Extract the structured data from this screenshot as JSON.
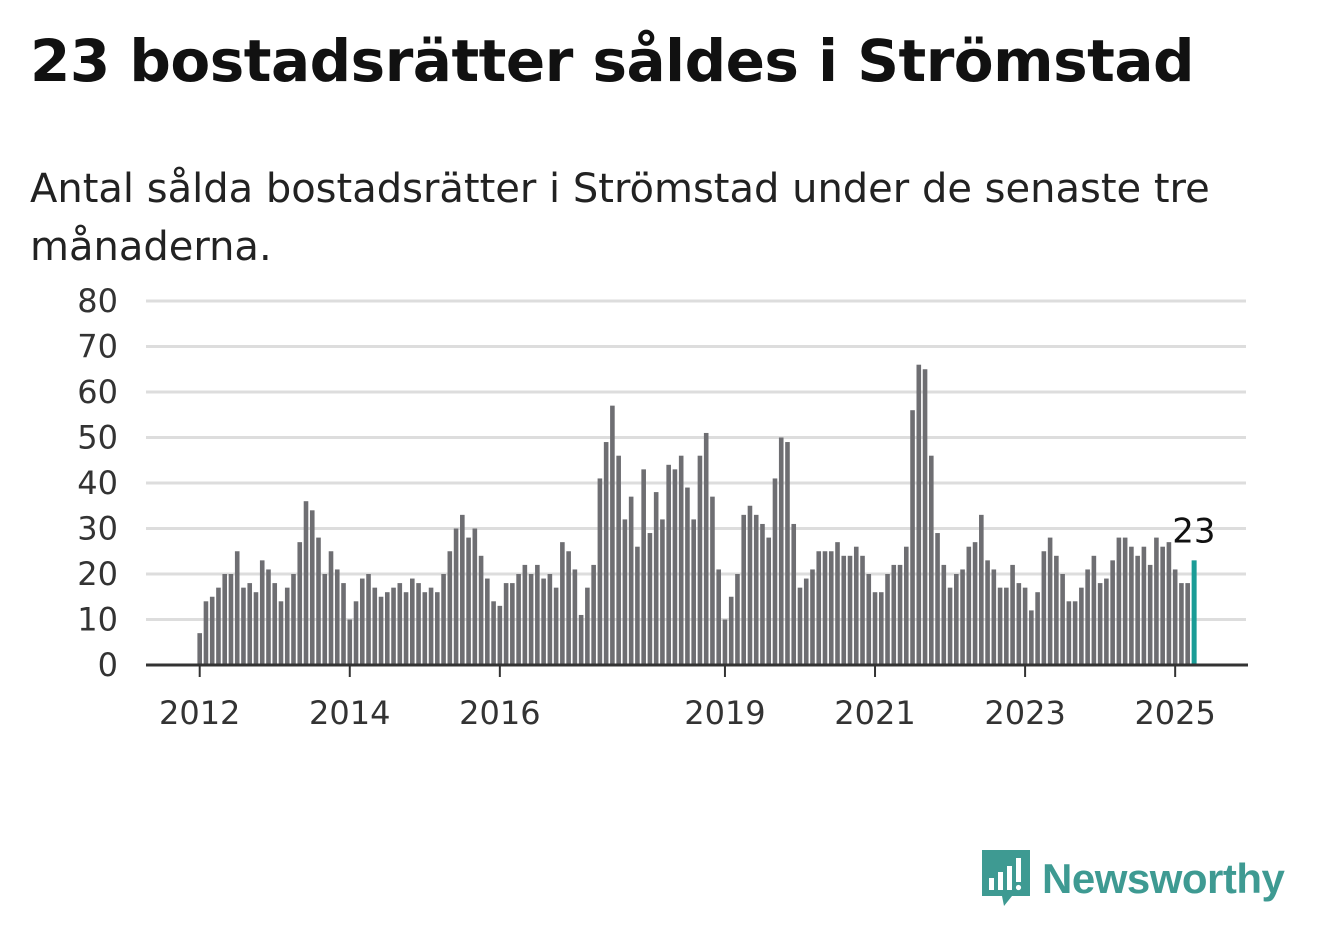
{
  "title": "23 bostadsrätter såldes i Strömstad",
  "subtitle": "Antal sålda bostadsrätter i Strömstad under de senaste tre månaderna.",
  "brand": {
    "name": "Newsworthy",
    "icon": "newsworthy-chart-bubble-icon",
    "color": "#3e9a92"
  },
  "colors": {
    "bar": "#6e6e72",
    "highlight": "#1a9c96",
    "grid": "#dddddd",
    "axis": "#333333"
  },
  "chart_data": {
    "type": "bar",
    "title": "23 bostadsrätter såldes i Strömstad",
    "subtitle": "Antal sålda bostadsrätter i Strömstad under de senaste tre månaderna.",
    "x_start": "2012-01",
    "x_unit": "month",
    "ylim": [
      0,
      80
    ],
    "y_ticks": [
      0,
      10,
      20,
      30,
      40,
      50,
      60,
      70,
      80
    ],
    "x_ticks": [
      {
        "label": "2012",
        "date": "2012-01"
      },
      {
        "label": "2014",
        "date": "2014-01"
      },
      {
        "label": "2016",
        "date": "2016-01"
      },
      {
        "label": "2019",
        "date": "2019-01"
      },
      {
        "label": "2021",
        "date": "2021-01"
      },
      {
        "label": "2023",
        "date": "2023-01"
      },
      {
        "label": "2025",
        "date": "2025-01"
      }
    ],
    "grid": true,
    "highlight_label": "23",
    "values": [
      7,
      14,
      15,
      17,
      20,
      20,
      25,
      17,
      18,
      16,
      23,
      21,
      18,
      14,
      17,
      20,
      27,
      36,
      34,
      28,
      20,
      25,
      21,
      18,
      10,
      14,
      19,
      20,
      17,
      15,
      16,
      17,
      18,
      16,
      19,
      18,
      16,
      17,
      16,
      20,
      25,
      30,
      33,
      28,
      30,
      24,
      19,
      14,
      13,
      18,
      18,
      20,
      22,
      20,
      22,
      19,
      20,
      17,
      27,
      25,
      21,
      11,
      17,
      22,
      41,
      49,
      57,
      46,
      32,
      37,
      26,
      43,
      29,
      38,
      32,
      44,
      43,
      46,
      39,
      32,
      46,
      51,
      37,
      21,
      10,
      15,
      20,
      33,
      35,
      33,
      31,
      28,
      41,
      50,
      49,
      31,
      17,
      19,
      21,
      25,
      25,
      25,
      27,
      24,
      24,
      26,
      24,
      20,
      16,
      16,
      20,
      22,
      22,
      26,
      56,
      66,
      65,
      46,
      29,
      22,
      17,
      20,
      21,
      26,
      27,
      33,
      23,
      21,
      17,
      17,
      22,
      18,
      17,
      12,
      16,
      25,
      28,
      24,
      20,
      14,
      14,
      17,
      21,
      24,
      18,
      19,
      23,
      28,
      28,
      26,
      24,
      26,
      22,
      28,
      26,
      27,
      21,
      18,
      18,
      23
    ]
  }
}
